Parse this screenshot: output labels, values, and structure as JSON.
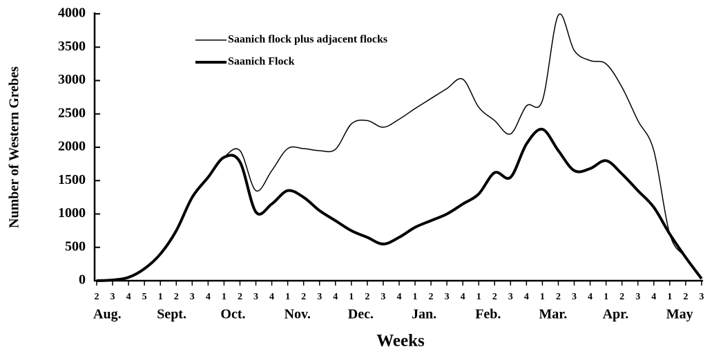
{
  "chart_data": {
    "type": "line",
    "y_label": "Number of Western Grebes",
    "x_label": "Weeks",
    "groups": [
      {
        "name": "Aug.",
        "weeks": [
          "2",
          "3",
          "4",
          "5"
        ]
      },
      {
        "name": "Sept.",
        "weeks": [
          "1",
          "2",
          "3",
          "4"
        ]
      },
      {
        "name": "Oct.",
        "weeks": [
          "1",
          "2",
          "3",
          "4"
        ]
      },
      {
        "name": "Nov.",
        "weeks": [
          "1",
          "2",
          "3",
          "4"
        ]
      },
      {
        "name": "Dec.",
        "weeks": [
          "1",
          "2",
          "3",
          "4"
        ]
      },
      {
        "name": "Jan.",
        "weeks": [
          "1",
          "2",
          "3",
          "4"
        ]
      },
      {
        "name": "Feb.",
        "weeks": [
          "1",
          "2",
          "3",
          "4"
        ]
      },
      {
        "name": "Mar.",
        "weeks": [
          "1",
          "2",
          "3",
          "4"
        ]
      },
      {
        "name": "Apr.",
        "weeks": [
          "1",
          "2",
          "3",
          "4"
        ]
      },
      {
        "name": "May",
        "weeks": [
          "1",
          "2",
          "3"
        ]
      }
    ],
    "series": [
      {
        "name": "Saanich flock plus adjacent flocks",
        "color": "#000",
        "width": 1.5,
        "values": [
          0,
          10,
          50,
          180,
          400,
          750,
          1250,
          1550,
          1850,
          1950,
          1350,
          1650,
          1980,
          1980,
          1950,
          1970,
          2350,
          2400,
          2300,
          2420,
          2580,
          2730,
          2880,
          3020,
          2600,
          2400,
          2200,
          2620,
          2700,
          3980,
          3450,
          3300,
          3250,
          2900,
          2400,
          1950,
          700,
          350,
          30
        ]
      },
      {
        "name": "Saanich Flock",
        "color": "#000",
        "width": 4,
        "values": [
          0,
          10,
          50,
          180,
          400,
          750,
          1250,
          1550,
          1850,
          1780,
          1030,
          1150,
          1350,
          1250,
          1050,
          900,
          750,
          650,
          550,
          650,
          800,
          900,
          1000,
          1150,
          1300,
          1620,
          1550,
          2050,
          2270,
          1950,
          1650,
          1680,
          1800,
          1600,
          1350,
          1100,
          700,
          350,
          30
        ]
      }
    ],
    "ylim": [
      0,
      4000
    ],
    "yticks": [
      0,
      500,
      1000,
      1500,
      2000,
      2500,
      3000,
      3500,
      4000
    ]
  }
}
